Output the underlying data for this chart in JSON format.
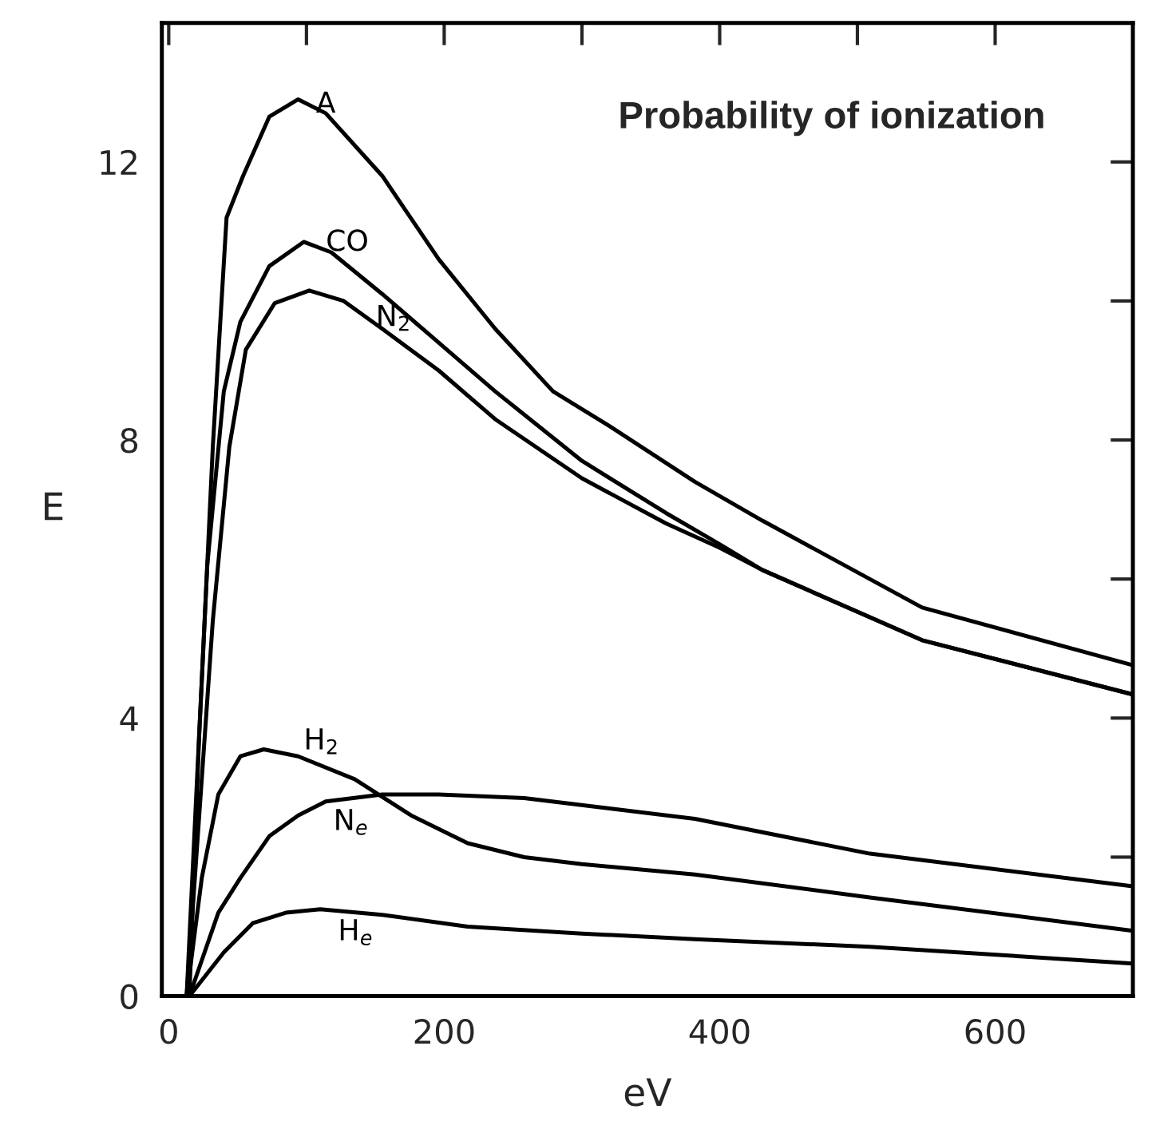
{
  "chart_data": {
    "type": "line",
    "title": "Probability of ionization",
    "xlabel": "eV",
    "ylabel": "E",
    "xlim": [
      -5,
      700
    ],
    "ylim": [
      0,
      14
    ],
    "xticks": [
      0,
      {
        "value": 100,
        "label": null
      },
      200,
      {
        "value": 300,
        "label": null
      },
      400,
      {
        "value": 500,
        "label": null
      },
      600
    ],
    "yticks": [
      0,
      {
        "value": 2,
        "label": null
      },
      4,
      {
        "value": 6,
        "label": null
      },
      8,
      {
        "value": 10,
        "label": null
      },
      12
    ],
    "grid": false,
    "legend": false,
    "marker": "none",
    "line_style": "solid",
    "series": [
      {
        "name": "A",
        "color": "#000000",
        "x": [
          15,
          22,
          32,
          42,
          54,
          73,
          94,
          114,
          155,
          196,
          237,
          279,
          320,
          382,
          431,
          547,
          700
        ],
        "values": [
          0,
          3.7,
          7.9,
          11.2,
          11.8,
          12.65,
          12.9,
          12.7,
          11.8,
          10.6,
          9.6,
          8.7,
          8.2,
          7.4,
          6.84,
          5.59,
          4.76
        ]
      },
      {
        "name": "CO",
        "color": "#000000",
        "x": [
          13,
          28,
          40,
          52,
          73,
          98,
          118,
          155,
          196,
          237,
          300,
          361,
          400,
          431,
          547,
          700
        ],
        "values": [
          0,
          6.2,
          8.7,
          9.7,
          10.5,
          10.85,
          10.7,
          10.1,
          9.4,
          8.7,
          7.7,
          6.95,
          6.5,
          6.13,
          5.12,
          4.34
        ]
      },
      {
        "name": "N$_{2}$",
        "color": "#000000",
        "x": [
          13,
          32,
          44,
          56,
          77,
          102,
          127,
          155,
          196,
          237,
          300,
          361,
          400,
          431,
          547,
          700
        ],
        "values": [
          0,
          5.4,
          7.9,
          9.3,
          9.97,
          10.15,
          10.0,
          9.6,
          9.0,
          8.3,
          7.45,
          6.8,
          6.45,
          6.13,
          5.12,
          4.34
        ]
      },
      {
        "name": "H$_{2}$",
        "color": "#000000",
        "x": [
          13,
          24,
          36,
          52,
          69,
          94,
          135,
          176,
          217,
          258,
          300,
          382,
          509,
          700
        ],
        "values": [
          0,
          1.7,
          2.9,
          3.45,
          3.55,
          3.45,
          3.12,
          2.6,
          2.2,
          2.0,
          1.9,
          1.75,
          1.42,
          0.94
        ]
      },
      {
        "name": "N$_{e}$",
        "color": "#000000",
        "x": [
          15,
          36,
          52,
          73,
          94,
          114,
          155,
          196,
          258,
          320,
          382,
          509,
          700
        ],
        "values": [
          0,
          1.2,
          1.7,
          2.3,
          2.6,
          2.8,
          2.9,
          2.9,
          2.85,
          2.7,
          2.55,
          2.05,
          1.58
        ]
      },
      {
        "name": "H$_{e}$",
        "color": "#000000",
        "x": [
          15,
          40,
          61,
          85,
          110,
          155,
          217,
          300,
          382,
          509,
          700
        ],
        "values": [
          0,
          0.63,
          1.05,
          1.2,
          1.25,
          1.17,
          1.0,
          0.9,
          0.82,
          0.71,
          0.47
        ]
      }
    ]
  }
}
